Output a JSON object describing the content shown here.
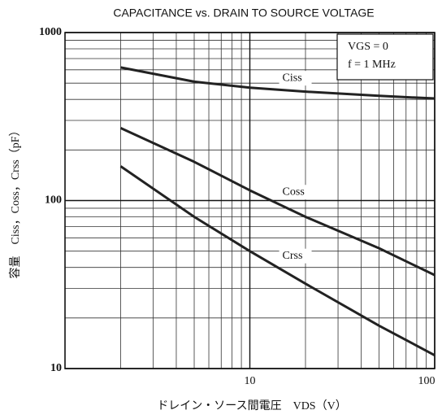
{
  "chart_data": {
    "type": "line",
    "title": "CAPACITANCE vs. DRAIN TO SOURCE VOLTAGE",
    "x_label": "ドレイン・ソース間電圧　VDS（V）",
    "y_label": "容量　Ciss，Coss，Crss（pF）",
    "annotations": [
      "VGS = 0",
      "f = 1 MHz"
    ],
    "x": [
      2,
      5,
      10,
      20,
      50,
      100
    ],
    "series": [
      {
        "name": "Ciss",
        "color": "#222",
        "values": [
          620,
          510,
          470,
          445,
          420,
          405
        ]
      },
      {
        "name": "Coss",
        "color": "#222",
        "values": [
          270,
          170,
          115,
          80,
          52,
          36
        ]
      },
      {
        "name": "Crss",
        "color": "#222",
        "values": [
          160,
          80,
          50,
          32,
          18,
          12
        ]
      }
    ],
    "xlim": [
      1,
      100
    ],
    "xticks": [
      10,
      100
    ],
    "ylim": [
      10,
      1000
    ],
    "yticks": [
      10,
      100,
      1000
    ],
    "log_x": true,
    "log_y": true,
    "grid": true
  }
}
